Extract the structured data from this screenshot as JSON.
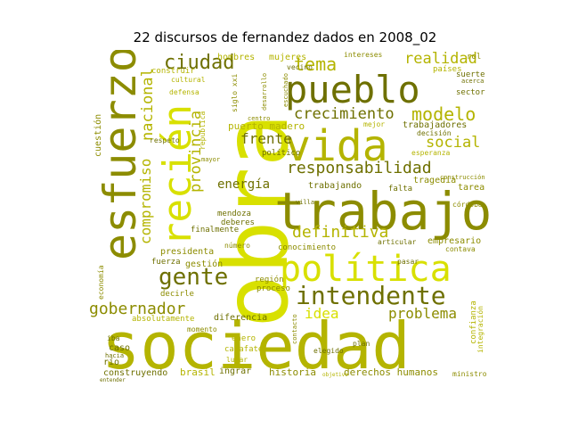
{
  "title": "22 discursos de fernandez dados en 2008_02",
  "palette": {
    "bright": "#d8e000",
    "mid": "#b4b400",
    "olive": "#8c8c00",
    "dark": "#6e7000"
  },
  "words": [
    "obra",
    "sociedad",
    "trabajo",
    "esfuerzo",
    "vida",
    "pueblo",
    "política",
    "recién",
    "intendente",
    "gente",
    "ciudad",
    "crecimiento",
    "responsabilidad",
    "modelo",
    "tema",
    "realidad",
    "social",
    "compromiso",
    "nacional",
    "provincia",
    "definitiva",
    "gobernador",
    "problema",
    "idea",
    "frente",
    "energía",
    "cuestión",
    "historia",
    "brasil",
    "derechos humanos",
    "trabajadores",
    "puerto madero",
    "presidenta",
    "gestión",
    "mujeres",
    "hombres",
    "intereses",
    "países",
    "sector",
    "suerte",
    "confianza",
    "integración",
    "diferencia",
    "absolutamente",
    "conocimiento",
    "trabajando",
    "tragedia",
    "tarea",
    "empresario",
    "caso",
    "río",
    "construyendo",
    "ingrar",
    "enero",
    "calafate",
    "lugar",
    "fuerza",
    "región",
    "proceso",
    "decirle",
    "economía",
    "mendoza",
    "deberes",
    "construir",
    "cultural",
    "defensa",
    "siglo xxi",
    "rol",
    "vecino",
    "político",
    "mejor",
    "falta",
    "elegido",
    "plan",
    "ministro",
    "córdoba",
    "contava",
    "construcción",
    "esperanza",
    "decisión",
    "respeto",
    "republica",
    "finalmente",
    "hacia",
    "iba",
    "número",
    "articular",
    "pasar",
    "villa",
    "centro",
    "escuchado",
    "acerca",
    "entender",
    "objetivo",
    "mayor",
    "contacto",
    "momento",
    "desarrollo"
  ]
}
